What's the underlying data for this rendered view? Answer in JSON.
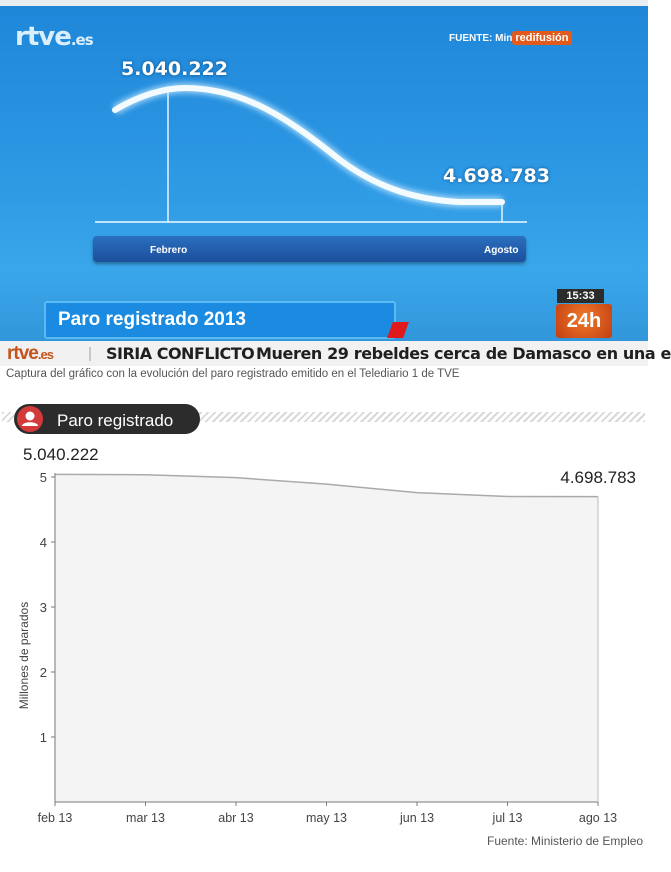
{
  "tv": {
    "logo": "rtve",
    "logo_suffix": ".es",
    "source_label": "FUENTE: Min",
    "source_brand": "redifusión",
    "start_value": "5.040.222",
    "end_value": "4.698.783",
    "month_start": "Febrero",
    "month_end": "Agosto",
    "title": "Paro registrado 2013",
    "clock": "15:33",
    "channel": "24h",
    "ticker_logo": "rtve",
    "ticker_logo_suffix": ".es",
    "ticker_topic": "SIRIA CONFLICTO",
    "ticker_text": "Mueren 29 rebeldes cerca de Damasco en una e"
  },
  "caption": "Captura del gráfico con la evolución del paro registrado emitido en el Telediario 1 de TVE",
  "section": {
    "title": "Paro registrado"
  },
  "colors": {
    "accent": "#d33b3b",
    "tv_blue": "#2a95e2",
    "area_fill": "#f4f4f4",
    "line": "#aaaaaa"
  },
  "chart_data": {
    "type": "area",
    "title": "Paro registrado",
    "ylabel": "Millones de parados",
    "xlabel": "",
    "x": [
      "feb 13",
      "mar 13",
      "abr 13",
      "may 13",
      "jun 13",
      "jul 13",
      "ago 13"
    ],
    "values": [
      5.040222,
      5.035,
      4.99,
      4.89,
      4.76,
      4.7,
      4.698783
    ],
    "ylim": [
      0,
      5
    ],
    "yticks": [
      1,
      2,
      3,
      4,
      5
    ],
    "annotations": [
      {
        "text": "5.040.222",
        "at": "feb 13"
      },
      {
        "text": "4.698.783",
        "at": "ago 13"
      }
    ],
    "grid": false,
    "source": "Fuente: Ministerio de Empleo"
  }
}
